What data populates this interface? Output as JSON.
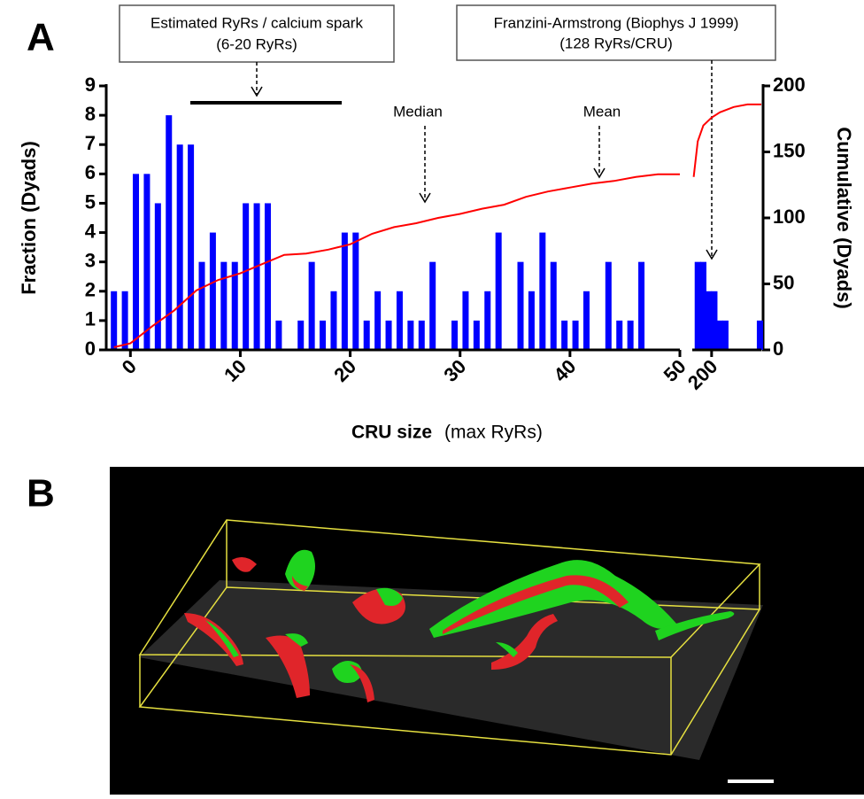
{
  "panel_labels": [
    "A",
    "B"
  ],
  "annotations": {
    "spark_box": [
      "Estimated RyRs / calcium spark",
      "(6-20 RyRs)"
    ],
    "franzini_box": [
      "Franzini-Armstrong (Biophys J 1999)",
      "(128 RyRs/CRU)"
    ],
    "median": "Median",
    "mean": "Mean"
  },
  "chart_data": [
    {
      "type": "bar",
      "x_label": [
        "CRU size",
        "(max RyRs)"
      ],
      "y_label": "Fraction (Dyads)",
      "y2_label": "Cumulative (Dyads)",
      "xlim": [
        -2.2,
        50
      ],
      "xticks": [
        0,
        10,
        20,
        30,
        40,
        50
      ],
      "ylim": [
        0,
        9
      ],
      "yticks": [
        0,
        1,
        2,
        3,
        4,
        5,
        6,
        7,
        8,
        9
      ],
      "y2lim": [
        0,
        200
      ],
      "y2ticks": [
        0,
        50,
        100,
        150,
        200
      ],
      "series": [
        {
          "type": "bar",
          "color": "#0000ff",
          "x": [
            -1.5,
            -0.5,
            0.5,
            1.5,
            2.5,
            3.5,
            4.5,
            5.5,
            6.5,
            7.5,
            8.5,
            9.5,
            10.5,
            11.5,
            12.5,
            13.5,
            14.5,
            15.5,
            16.5,
            17.5,
            18.5,
            19.5,
            20.5,
            21.5,
            22.5,
            23.5,
            24.5,
            25.5,
            26.5,
            27.5,
            28.5,
            29.5,
            30.5,
            31.5,
            32.5,
            33.5,
            34.5,
            35.5,
            36.5,
            37.5,
            38.5,
            39.5,
            40.5,
            41.5,
            42.5,
            43.5,
            44.5,
            45.5,
            46.5,
            47.5
          ],
          "values": [
            2,
            2,
            6,
            6,
            5,
            8,
            7,
            7,
            3,
            4,
            3,
            3,
            5,
            5,
            5,
            1,
            0,
            1,
            3,
            1,
            2,
            4,
            4,
            1,
            2,
            1,
            2,
            1,
            1,
            3,
            0,
            1,
            2,
            1,
            2,
            4,
            0,
            3,
            2,
            4,
            3,
            1,
            1,
            2,
            0,
            3,
            1,
            1,
            3,
            0
          ]
        },
        {
          "type": "line",
          "color": "#ff0000",
          "axis": "y2",
          "x": [
            -1.5,
            0,
            2,
            4,
            6,
            8,
            10,
            12,
            14,
            16,
            18,
            20,
            22,
            24,
            26,
            28,
            30,
            32,
            34,
            36,
            38,
            40,
            42,
            44,
            46,
            48,
            50
          ],
          "values": [
            2,
            5,
            18,
            30,
            45,
            53,
            58,
            65,
            72,
            73,
            76,
            80,
            88,
            93,
            96,
            100,
            103,
            107,
            110,
            116,
            120,
            123,
            126,
            128,
            131,
            133,
            133
          ]
        }
      ]
    },
    {
      "type": "bar",
      "xlim": [
        193,
        218
      ],
      "xticks": [
        200
      ],
      "series": [
        {
          "type": "bar",
          "color": "#0000ff",
          "x": [
            195,
            197,
            199,
            201,
            203,
            205,
            217.5
          ],
          "values": [
            3,
            3,
            2,
            2,
            1,
            1,
            1
          ]
        },
        {
          "type": "line",
          "color": "#ff0000",
          "axis": "y2",
          "x": [
            193.5,
            195,
            197,
            200,
            203,
            208,
            213,
            218
          ],
          "values": [
            131,
            158,
            170,
            176,
            180,
            184,
            186,
            186
          ]
        }
      ]
    }
  ]
}
